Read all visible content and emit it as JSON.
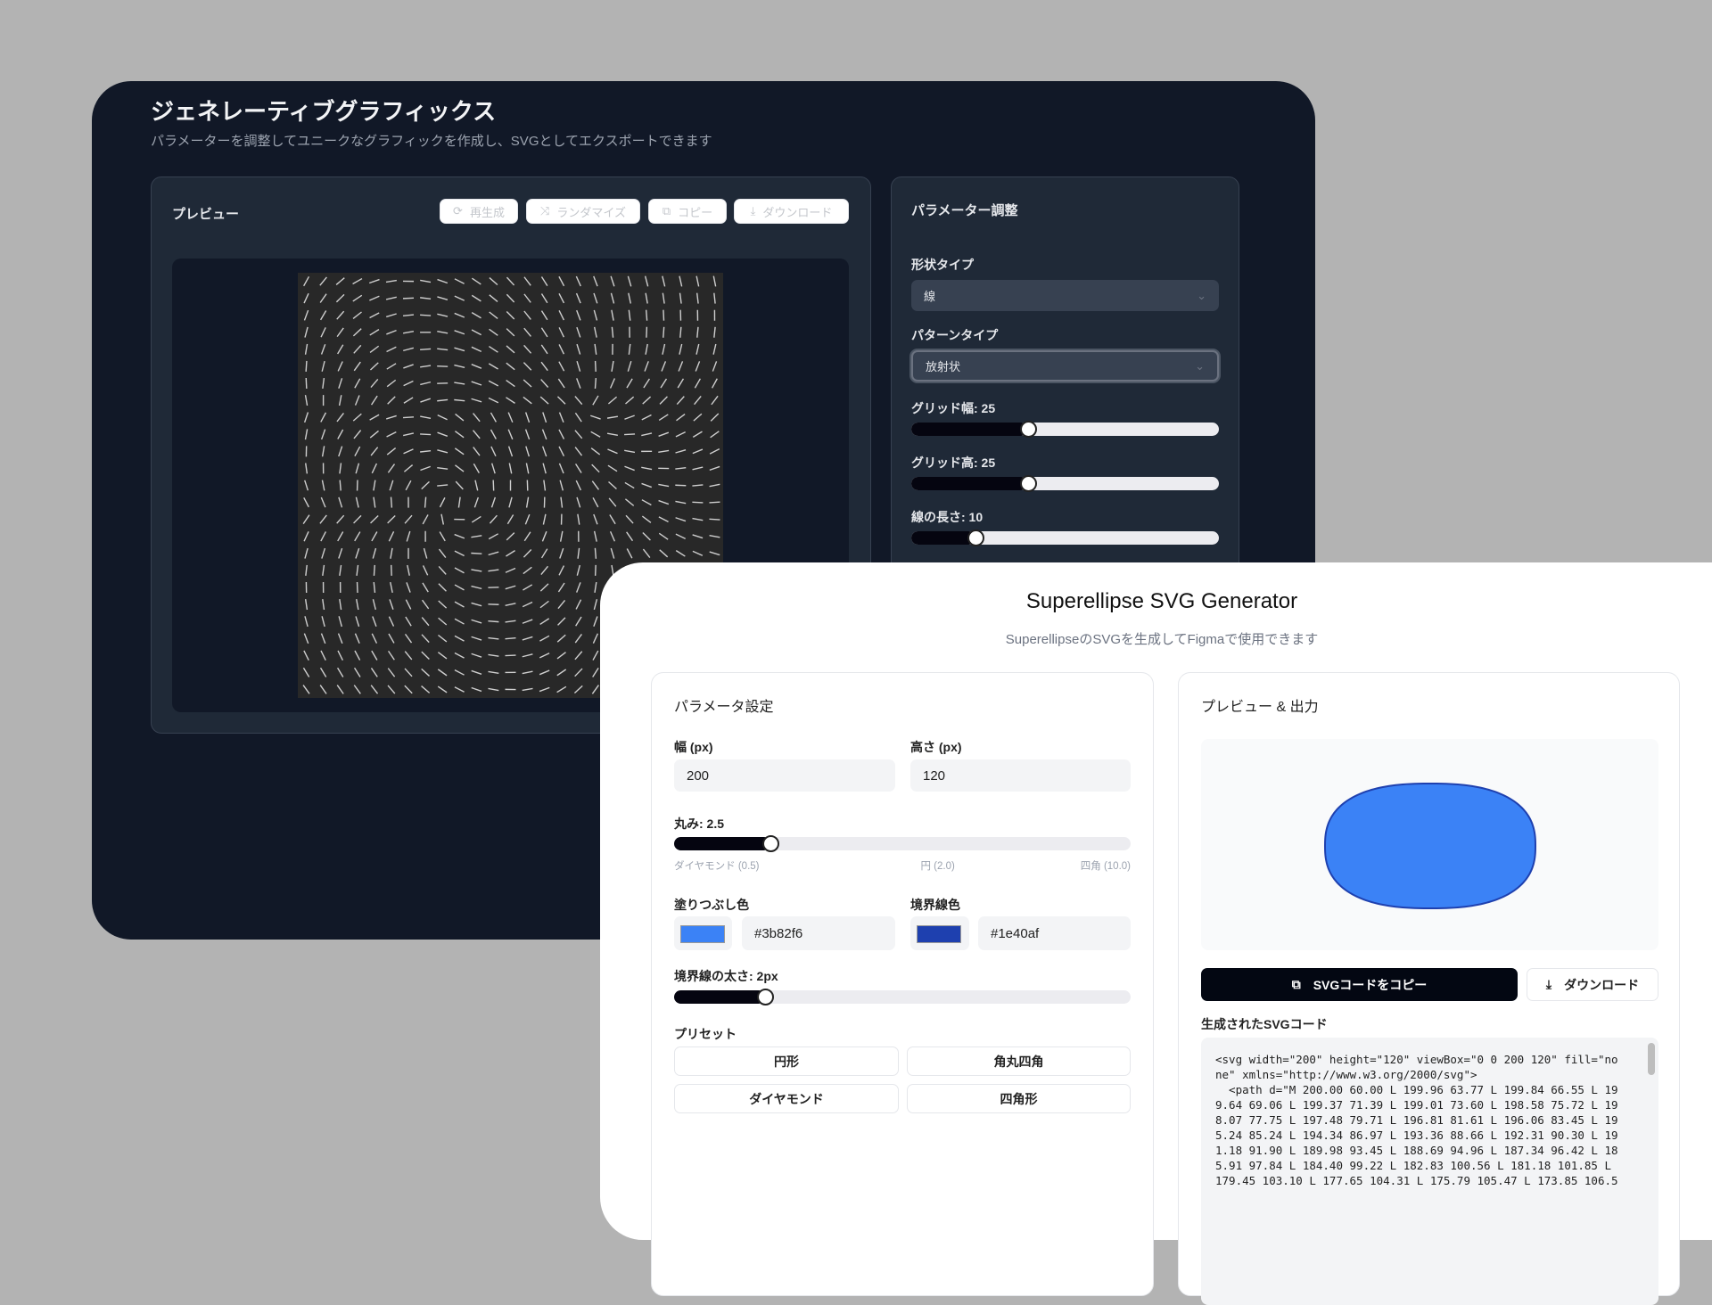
{
  "generative": {
    "title": "ジェネレーティブグラフィックス",
    "subtitle": "パラメーターを調整してユニークなグラフィックを作成し、SVGとしてエクスポートできます",
    "preview": {
      "title": "プレビュー",
      "buttons": {
        "regenerate": "再生成",
        "randomize": "ランダマイズ",
        "copy": "コピー",
        "download": "ダウンロード"
      },
      "pattern_background": "#282828",
      "line_color": "#cfcfcf"
    },
    "params": {
      "title": "パラメーター調整",
      "shape_label": "形状タイプ",
      "shape_value": "線",
      "pattern_label": "パターンタイプ",
      "pattern_value": "放射状",
      "grid_width": {
        "label": "グリッド幅: 25",
        "value": 25,
        "fill_percent": 38
      },
      "grid_height": {
        "label": "グリッド高: 25",
        "value": 25,
        "fill_percent": 38
      },
      "line_length": {
        "label": "線の長さ: 10",
        "value": 10,
        "fill_percent": 21
      }
    }
  },
  "superellipse": {
    "title": "Superellipse SVG Generator",
    "subtitle": "SuperellipseのSVGを生成してFigmaで使用できます",
    "settings": {
      "title": "パラメータ設定",
      "width_label": "幅 (px)",
      "width_value": "200",
      "height_label": "高さ (px)",
      "height_value": "120",
      "roundness": {
        "label": "丸み: 2.5",
        "value": 2.5,
        "fill_percent": 21
      },
      "roundness_marks": [
        "ダイヤモンド (0.5)",
        "円 (2.0)",
        "四角 (10.0)"
      ],
      "fill_label": "塗りつぶし色",
      "fill_color": "#3b82f6",
      "stroke_label": "境界線色",
      "stroke_color": "#1e40af",
      "stroke_width": {
        "label": "境界線の太さ: 2px",
        "value": 2,
        "fill_percent": 20
      },
      "presets_label": "プリセット",
      "presets": [
        "円形",
        "角丸四角",
        "ダイヤモンド",
        "四角形"
      ]
    },
    "output": {
      "title": "プレビュー & 出力",
      "copy_button": "SVGコードをコピー",
      "download_button": "ダウンロード",
      "code_label": "生成されたSVGコード",
      "code_lines": [
        "<svg width=\"200\" height=\"120\" viewBox=\"0 0 200 120\" fill=\"no",
        "ne\" xmlns=\"http://www.w3.org/2000/svg\">",
        "  <path d=\"M 200.00 60.00 L 199.96 63.77 L 199.84 66.55 L 19",
        "9.64 69.06 L 199.37 71.39 L 199.01 73.60 L 198.58 75.72 L 19",
        "8.07 77.75 L 197.48 79.71 L 196.81 81.61 L 196.06 83.45 L 19",
        "5.24 85.24 L 194.34 86.97 L 193.36 88.66 L 192.31 90.30 L 19",
        "1.18 91.90 L 189.98 93.45 L 188.69 94.96 L 187.34 96.42 L 18",
        "5.91 97.84 L 184.40 99.22 L 182.83 100.56 L 181.18 101.85 L",
        "179.45 103.10 L 177.65 104.31 L 175.79 105.47 L 173.85 106.5"
      ]
    }
  }
}
